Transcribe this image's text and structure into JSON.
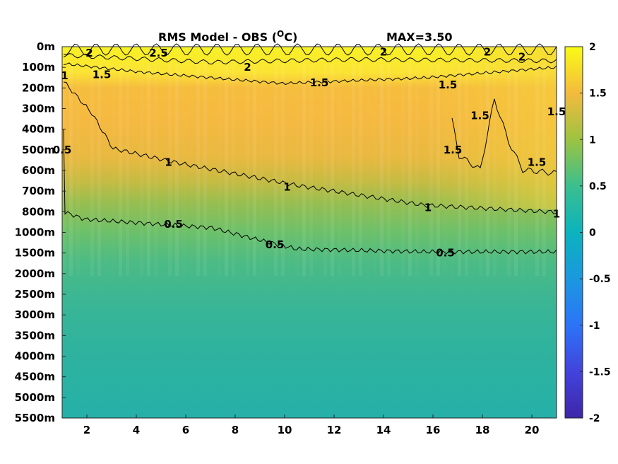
{
  "chart_data": {
    "type": "heatmap",
    "title": "RMS Model - OBS (",
    "title_superscript": "O",
    "title_unit": "C)",
    "max_label": "MAX=3.50",
    "x_ticks": [
      "2",
      "4",
      "6",
      "8",
      "10",
      "12",
      "14",
      "16",
      "18",
      "20"
    ],
    "x_range": [
      1,
      21
    ],
    "y_ticks": [
      "0m",
      "100m",
      "200m",
      "300m",
      "400m",
      "500m",
      "600m",
      "700m",
      "800m",
      "1000m",
      "1500m",
      "2000m",
      "2500m",
      "3000m",
      "3500m",
      "4000m",
      "4500m",
      "5000m",
      "5500m"
    ],
    "colorbar": {
      "min": -2,
      "max": 2,
      "ticks": [
        "2",
        "1.5",
        "1",
        "0.5",
        "0",
        "-0.5",
        "-1",
        "-1.5",
        "-2"
      ]
    },
    "depth_profile": [
      {
        "depth": "0m",
        "value": 2.1
      },
      {
        "depth": "100m",
        "value": 1.9
      },
      {
        "depth": "200m",
        "value": 1.35
      },
      {
        "depth": "300m",
        "value": 1.3
      },
      {
        "depth": "400m",
        "value": 1.25
      },
      {
        "depth": "500m",
        "value": 1.2
      },
      {
        "depth": "600m",
        "value": 1.1
      },
      {
        "depth": "700m",
        "value": 1.0
      },
      {
        "depth": "800m",
        "value": 0.9
      },
      {
        "depth": "1000m",
        "value": 0.7
      },
      {
        "depth": "1500m",
        "value": 0.5
      },
      {
        "depth": "2000m",
        "value": 0.38
      },
      {
        "depth": "2500m",
        "value": 0.3
      },
      {
        "depth": "3000m",
        "value": 0.25
      },
      {
        "depth": "3500m",
        "value": 0.24
      },
      {
        "depth": "4000m",
        "value": 0.23
      },
      {
        "depth": "4500m",
        "value": 0.22
      },
      {
        "depth": "5000m",
        "value": 0.2
      },
      {
        "depth": "5500m",
        "value": 0.2
      }
    ],
    "contour_labels": [
      {
        "text": "2",
        "x": 2.1,
        "depth_index": 0.3
      },
      {
        "text": "2.5",
        "x": 4.9,
        "depth_index": 0.3
      },
      {
        "text": "2",
        "x": 8.5,
        "depth_index": 1.0
      },
      {
        "text": "2",
        "x": 14.0,
        "depth_index": 0.25
      },
      {
        "text": "2",
        "x": 18.2,
        "depth_index": 0.25
      },
      {
        "text": "2",
        "x": 19.6,
        "depth_index": 0.5
      },
      {
        "text": "1",
        "x": 1.1,
        "depth_index": 1.4
      },
      {
        "text": "1.5",
        "x": 2.6,
        "depth_index": 1.35
      },
      {
        "text": "1.5",
        "x": 11.4,
        "depth_index": 1.75
      },
      {
        "text": "1.5",
        "x": 16.6,
        "depth_index": 1.85
      },
      {
        "text": "1.5",
        "x": 17.9,
        "depth_index": 3.35
      },
      {
        "text": "1.5",
        "x": 21.0,
        "depth_index": 3.15
      },
      {
        "text": "1.5",
        "x": 16.8,
        "depth_index": 5.0
      },
      {
        "text": "1.5",
        "x": 20.2,
        "depth_index": 5.6
      },
      {
        "text": "0.5",
        "x": 1.0,
        "depth_index": 5.0
      },
      {
        "text": "1",
        "x": 5.3,
        "depth_index": 5.6
      },
      {
        "text": "1",
        "x": 10.1,
        "depth_index": 6.8
      },
      {
        "text": "1",
        "x": 15.8,
        "depth_index": 7.8
      },
      {
        "text": "1",
        "x": 21.0,
        "depth_index": 8.1
      },
      {
        "text": "0.5",
        "x": 5.5,
        "depth_index": 8.6
      },
      {
        "text": "0.5",
        "x": 9.6,
        "depth_index": 9.6
      },
      {
        "text": "0.5",
        "x": 16.5,
        "depth_index": 10.0
      }
    ]
  }
}
